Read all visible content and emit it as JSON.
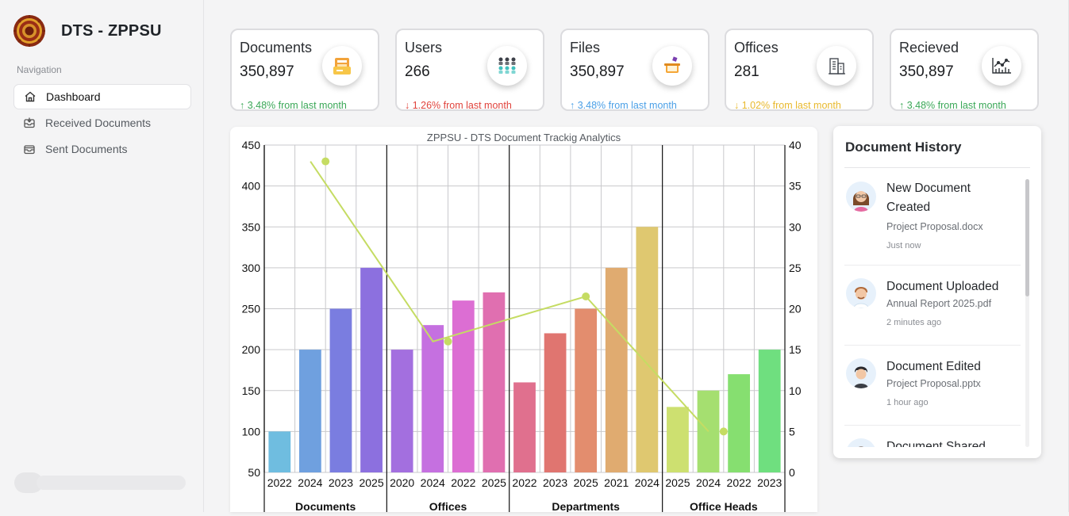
{
  "app": {
    "title": "DTS - ZPPSU"
  },
  "sidebar": {
    "heading": "Navigation",
    "items": [
      {
        "label": "Dashboard",
        "icon": "home-icon",
        "active": true
      },
      {
        "label": "Received Documents",
        "icon": "inbox-icon",
        "active": false
      },
      {
        "label": "Sent Documents",
        "icon": "outbox-icon",
        "active": false
      }
    ]
  },
  "stats": [
    {
      "label": "Documents",
      "value": "350,897",
      "trend": "↑ 3.48% from last month",
      "trend_color": "green",
      "icon": "folder-documents-icon"
    },
    {
      "label": "Users",
      "value": "266",
      "trend": "↓ 1.26% from last month",
      "trend_color": "red",
      "icon": "users-group-icon"
    },
    {
      "label": "Files",
      "value": "350,897",
      "trend": "↑ 3.48% from last month",
      "trend_color": "blue",
      "icon": "files-box-icon"
    },
    {
      "label": "Offices",
      "value": "281",
      "trend": "↓ 1.02% from last month",
      "trend_color": "yellow",
      "icon": "office-building-icon"
    },
    {
      "label": "Recieved",
      "value": "350,897",
      "trend": "↑ 3.48% from last month",
      "trend_color": "green",
      "icon": "line-chart-icon"
    }
  ],
  "chart_data": {
    "type": "bar",
    "title": "ZPPSU - DTS Document Trackig Analytics",
    "ylim": [
      50,
      450
    ],
    "yticks": [
      450,
      400,
      350,
      300,
      250,
      200,
      150,
      100,
      50
    ],
    "y2lim": [
      0,
      40
    ],
    "y2ticks": [
      40,
      35,
      30,
      25,
      20,
      15,
      10,
      5,
      0
    ],
    "grid": true,
    "groups": [
      {
        "name": "Documents",
        "categories": [
          "2022",
          "2024",
          "2023",
          "2025"
        ],
        "values": [
          100,
          200,
          250,
          300
        ]
      },
      {
        "name": "Offices",
        "categories": [
          "2020",
          "2024",
          "2022",
          "2025"
        ],
        "values": [
          200,
          230,
          260,
          270
        ]
      },
      {
        "name": "Departments",
        "categories": [
          "2022",
          "2023",
          "2025",
          "2021",
          "2024"
        ],
        "values": [
          160,
          220,
          250,
          300,
          350
        ]
      },
      {
        "name": "Office Heads",
        "categories": [
          "2025",
          "2024",
          "2022",
          "2023"
        ],
        "values": [
          130,
          150,
          170,
          200
        ]
      }
    ],
    "line": {
      "axis": "right",
      "points": [
        38,
        16,
        21.5,
        5
      ],
      "color": "#c5dc63"
    }
  },
  "history": {
    "title": "Document History",
    "items": [
      {
        "title": "New Document Created",
        "file": "Project Proposal.docx",
        "time": "Just now",
        "avatar": "woman-avatar-icon"
      },
      {
        "title": "Document Uploaded",
        "file": "Annual Report 2025.pdf",
        "time": "2 minutes ago",
        "avatar": "man-avatar-icon"
      },
      {
        "title": "Document Edited",
        "file": "Project Proposal.pptx",
        "time": "1 hour ago",
        "avatar": "man-dark-hair-avatar-icon"
      },
      {
        "title": "Document Shared",
        "file": "",
        "time": "",
        "avatar": "person-avatar-icon"
      }
    ]
  }
}
